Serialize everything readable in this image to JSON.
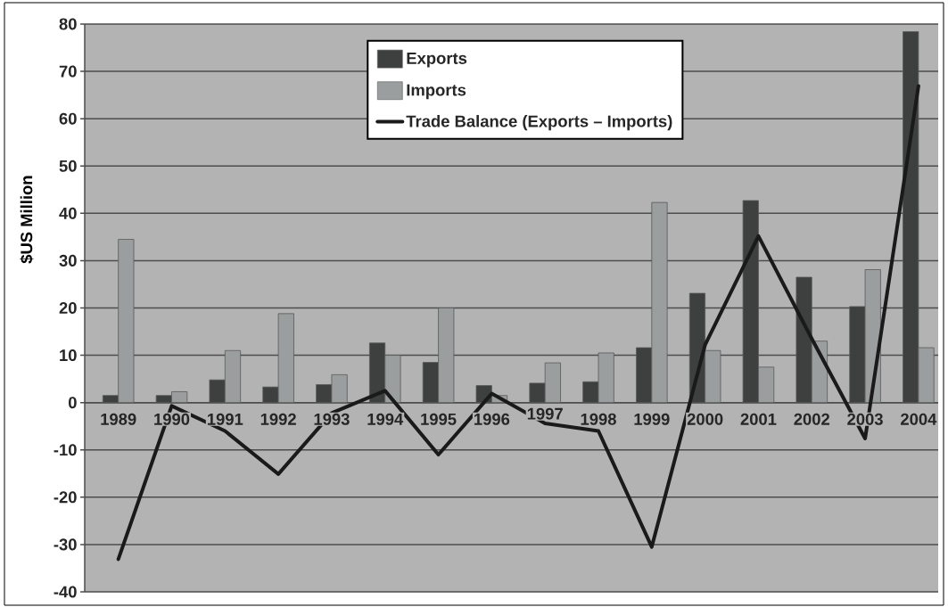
{
  "chart_data": {
    "type": "bar",
    "categories": [
      "1989",
      "1990",
      "1991",
      "1992",
      "1993",
      "1994",
      "1995",
      "1996",
      "1997",
      "1998",
      "1999",
      "2000",
      "2001",
      "2002",
      "2003",
      "2004"
    ],
    "ylabel": "$US Million",
    "ylim": [
      -40,
      80
    ],
    "yticks": [
      -40,
      -30,
      -20,
      -10,
      0,
      10,
      20,
      30,
      40,
      50,
      60,
      70,
      80
    ],
    "grid": "y",
    "legend": "top",
    "series": [
      {
        "name": "Exports",
        "color": "#3d403f",
        "values": [
          1.5,
          1.5,
          4.8,
          3.3,
          3.8,
          12.6,
          8.5,
          3.6,
          4.1,
          4.4,
          11.6,
          23.1,
          42.7,
          26.5,
          20.3,
          78.4
        ]
      },
      {
        "name": "Imports",
        "color": "#9a9e9e",
        "values": [
          34.5,
          2.3,
          11.0,
          18.8,
          5.9,
          10.0,
          20.0,
          1.5,
          8.4,
          10.5,
          42.3,
          11.0,
          7.5,
          13.0,
          28.1,
          11.6
        ]
      },
      {
        "name": "Trade Balance (Exports – Imports)",
        "type": "line",
        "color": "#1a1a1a",
        "values": [
          -33.1,
          -0.7,
          -6.0,
          -15.1,
          -2.2,
          2.5,
          -11.0,
          1.9,
          -4.4,
          -6.0,
          -30.5,
          12.2,
          35.2,
          13.5,
          -7.6,
          66.9
        ]
      }
    ]
  }
}
